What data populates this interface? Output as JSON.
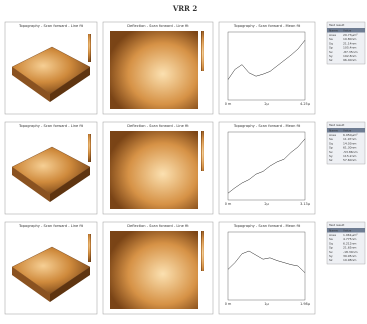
{
  "title": "VRR 2",
  "rows": [
    {
      "topo_title": "Topography - Scan forward - Line fit",
      "defl_title": "Deflection - Scan forward - Line fit",
      "profile_title": "Topography - Scan forward - Mean fit",
      "profile": {
        "x_labels": [
          "0 m",
          "2µ",
          "4.25µ"
        ],
        "ylim": [
          0,
          100
        ],
        "values": [
          30,
          45,
          52,
          40,
          35,
          38,
          42,
          50,
          58,
          66,
          75,
          88
        ]
      },
      "table": {
        "title": "Test result",
        "header": [
          "Name",
          "Value"
        ],
        "rows": [
          [
            "Area",
            "29.73µm²"
          ],
          [
            "Sa",
            "19.80nm"
          ],
          [
            "Sq",
            "21.14nm"
          ],
          [
            "Sp",
            "105.4nm"
          ],
          [
            "Sv",
            "-87.35nm"
          ],
          [
            "Sy",
            "192.8nm"
          ],
          [
            "Sz",
            "96.40nm"
          ]
        ]
      }
    },
    {
      "topo_title": "Topography - Scan forward - Line fit",
      "defl_title": "Deflection - Scan forward - Line fit",
      "profile_title": "Topography - Scan forward - Mean fit",
      "profile": {
        "x_labels": [
          "0 m",
          "2µ",
          "3.13µ"
        ],
        "ylim": [
          0,
          100
        ],
        "values": [
          10,
          18,
          25,
          30,
          38,
          42,
          50,
          56,
          60,
          70,
          78,
          90
        ]
      },
      "table": {
        "title": "Test result",
        "header": [
          "Name",
          "Value"
        ],
        "rows": [
          [
            "Area",
            "6.950µm²"
          ],
          [
            "Sa",
            "11.97nm"
          ],
          [
            "Sq",
            "14.03nm"
          ],
          [
            "Sp",
            "61.30nm"
          ],
          [
            "Sv",
            "-53.86nm"
          ],
          [
            "Sy",
            "115.2nm"
          ],
          [
            "Sz",
            "57.60nm"
          ]
        ]
      }
    },
    {
      "topo_title": "Topography - Scan forward - Line fit",
      "defl_title": "Deflection - Scan forward - Line fit",
      "profile_title": "Topography - Scan forward - Mean fit",
      "profile": {
        "x_labels": [
          "0 m",
          "1µ",
          "1.98µ"
        ],
        "ylim": [
          0,
          100
        ],
        "values": [
          45,
          55,
          68,
          72,
          66,
          60,
          62,
          58,
          55,
          52,
          50,
          40
        ]
      },
      "table": {
        "title": "Test result",
        "header": [
          "Name",
          "Value"
        ],
        "rows": [
          [
            "Area",
            "1.961µm²"
          ],
          [
            "Sa",
            "4.775nm"
          ],
          [
            "Sq",
            "6.212nm"
          ],
          [
            "Sp",
            "21.65nm"
          ],
          [
            "Sv",
            "-18.30nm"
          ],
          [
            "Sy",
            "39.95nm"
          ],
          [
            "Sz",
            "19.98nm"
          ]
        ]
      }
    }
  ]
}
